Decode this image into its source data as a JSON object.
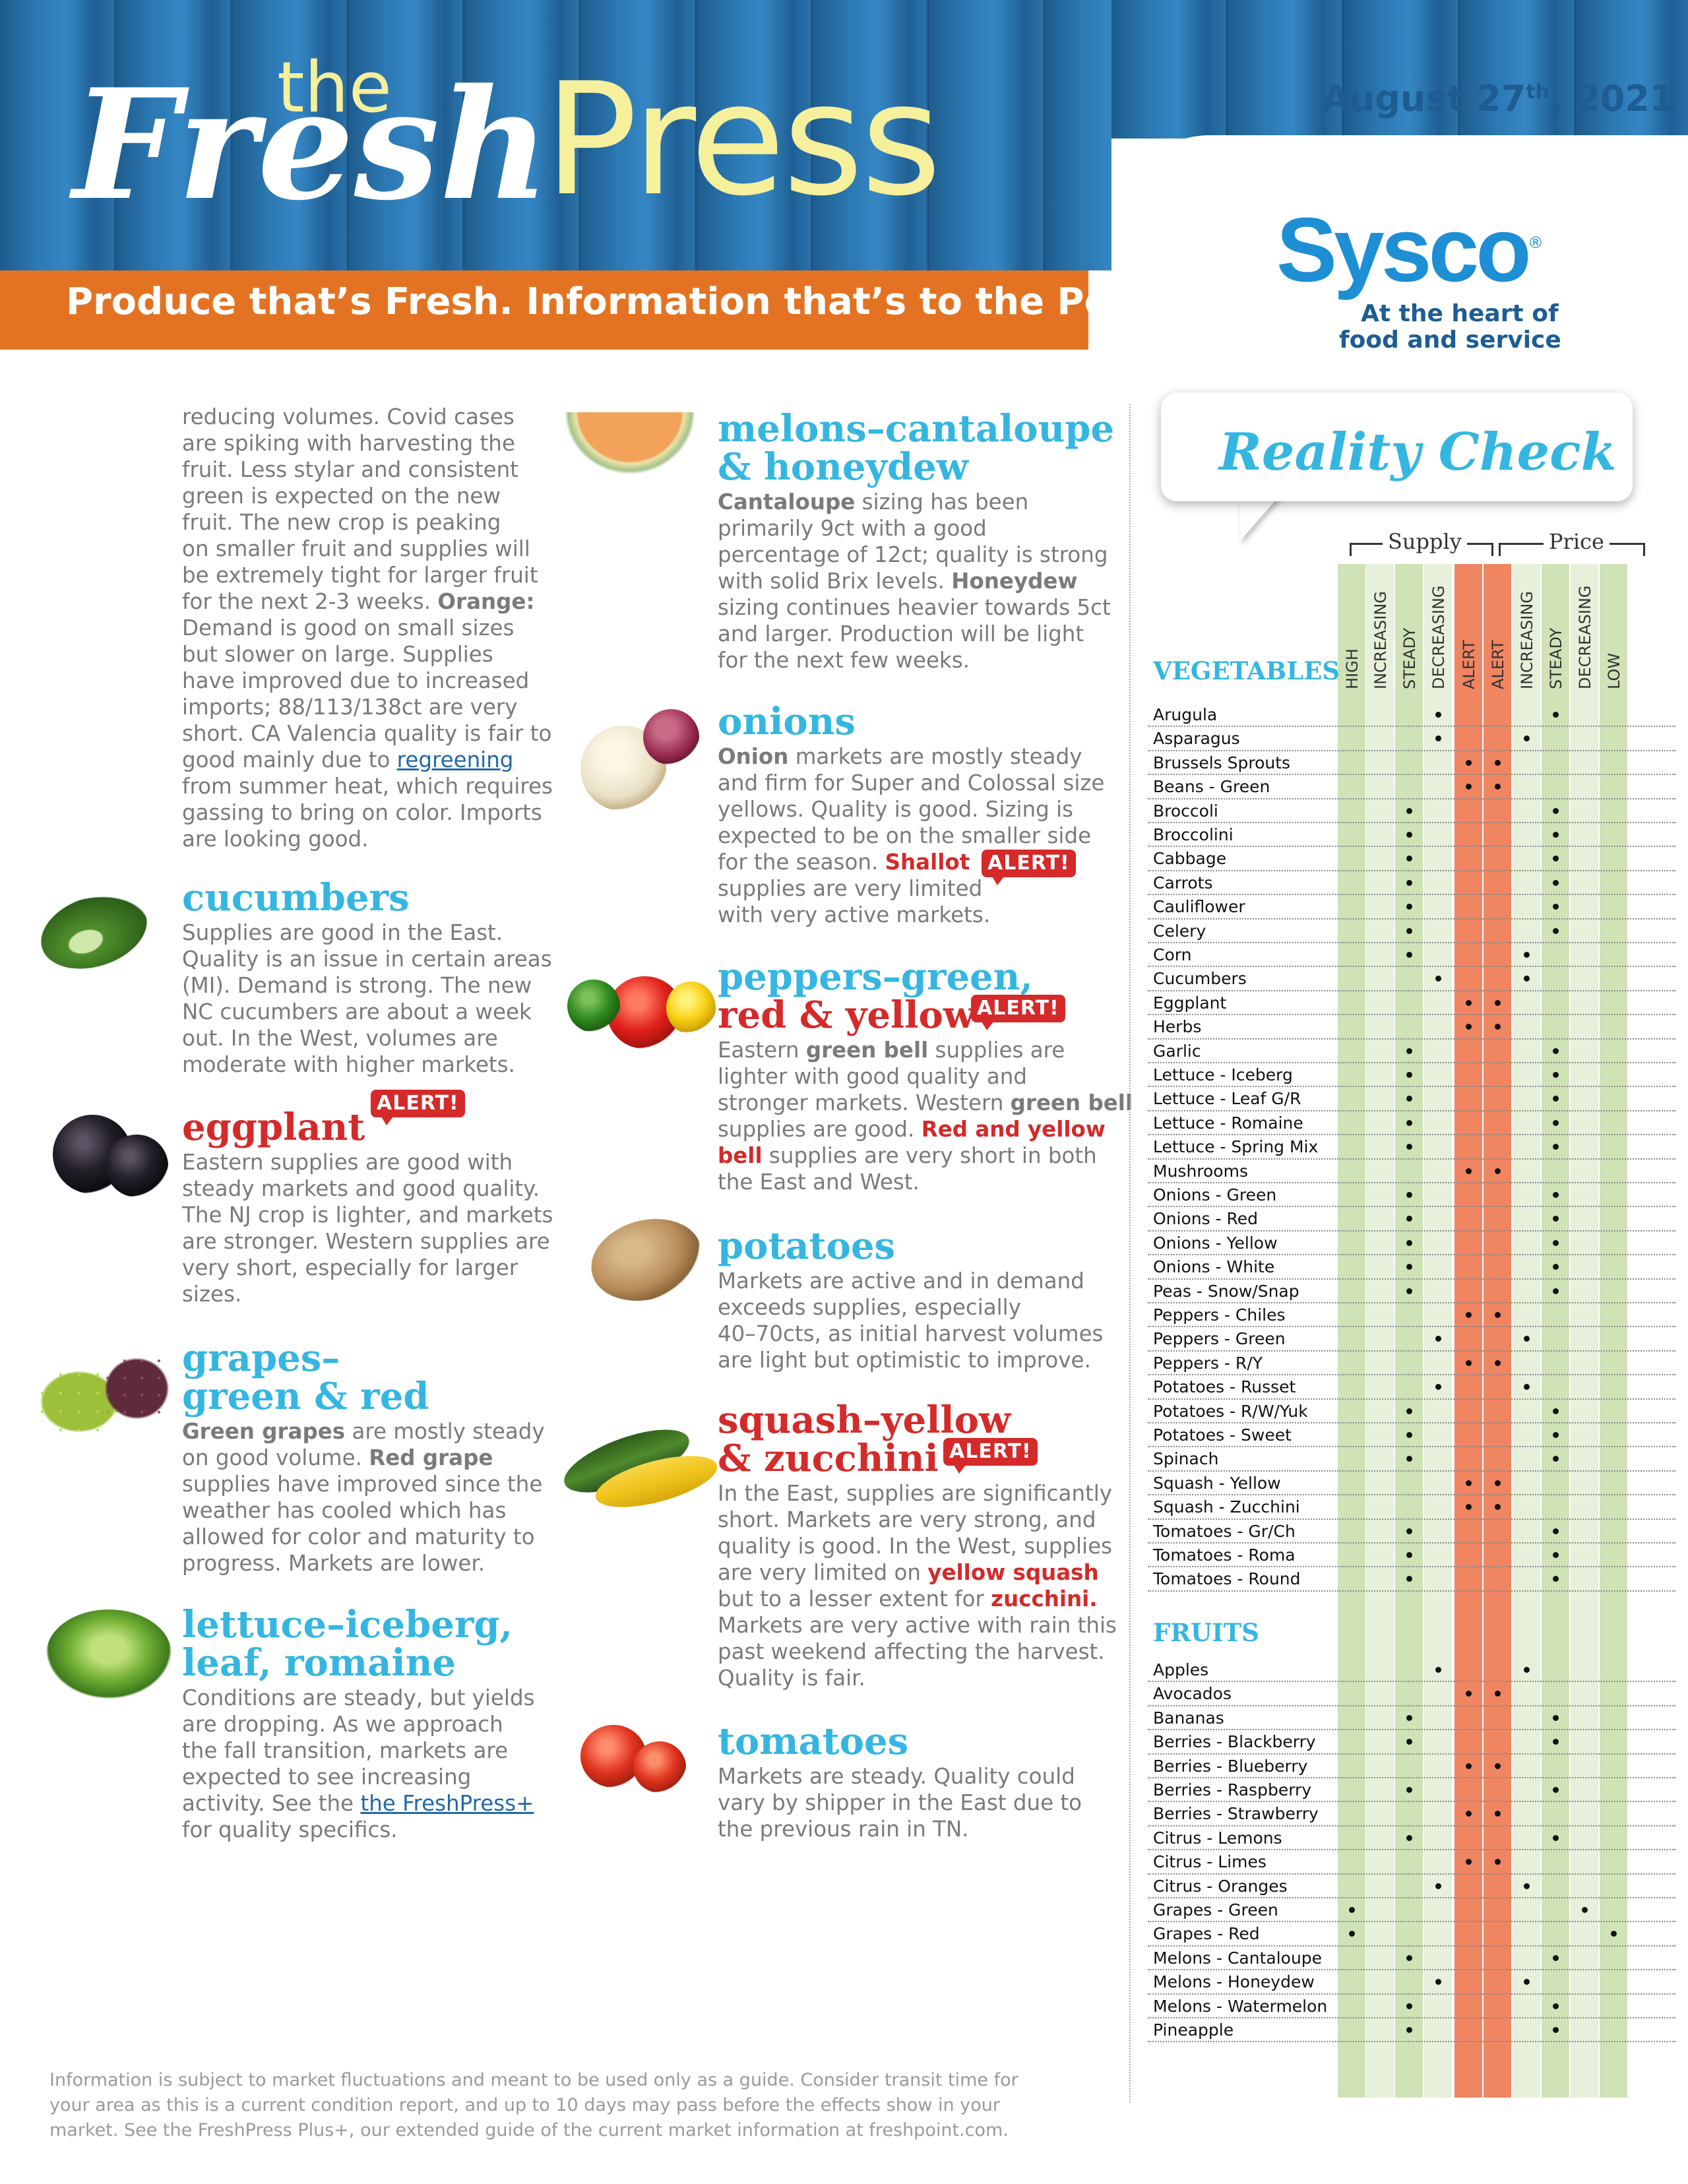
{
  "header": {
    "title_the": "the",
    "title_fresh": "Fresh",
    "title_press": "Press",
    "tagline": "Produce that’s Fresh. Information that’s to the Point.",
    "date_month_day": "August 27",
    "date_suffix": "th",
    "date_year": ", 2021",
    "logo_text": "Sysco",
    "logo_reg": "®",
    "slogan_line1": "At the heart of",
    "slogan_line2": "food and service"
  },
  "left_column": {
    "intro_lines": [
      "reducing volumes. Covid cases",
      "are spiking with harvesting the",
      "fruit. Less stylar and consistent",
      "green is expected on the new",
      "fruit. The new crop is peaking",
      "on smaller fruit and supplies will",
      "be extremely tight for larger fruit",
      "for the next 2-3 weeks. |Orange:|",
      "Demand is good on small sizes",
      "but slower on large. Supplies",
      "have improved due to increased",
      "imports; 88/113/138ct are very",
      "short. CA Valencia quality is fair to",
      "good mainly due to |regreening|",
      "from summer heat, which requires",
      "gassing to bring on color. Imports",
      "are looking good."
    ],
    "sections": [
      {
        "id": "cucumbers",
        "heading": [
          "cucumbers"
        ],
        "alert": "",
        "lines": [
          "Supplies are good in the East.",
          "Quality is an issue in certain areas",
          "(MI). Demand is strong. The new",
          "NC cucumbers are about a week",
          "out. In the West, volumes are",
          "moderate with higher markets."
        ]
      },
      {
        "id": "eggplant",
        "heading": [
          "eggplant"
        ],
        "alert": "ALERT!",
        "lines": [
          "Eastern supplies are good with",
          "steady markets and good quality.",
          "The NJ crop is lighter, and markets",
          "are stronger. Western supplies are",
          "very short, especially for larger",
          "sizes."
        ]
      },
      {
        "id": "grapes",
        "heading": [
          "grapes–",
          "green & red"
        ],
        "alert": "",
        "lines": [
          "|Green grapes| are mostly steady",
          "on good volume. |Red grape|",
          "supplies have improved since the",
          "weather has cooled which has",
          "allowed for color and maturity to",
          "progress. Markets are lower."
        ]
      },
      {
        "id": "lettuce",
        "heading": [
          "lettuce–iceberg,",
          "leaf, romaine"
        ],
        "alert": "",
        "lines": [
          "Conditions are steady, but yields",
          "are dropping. As we approach",
          "the fall transition, markets are",
          "expected to see increasing",
          "activity.  See the |the FreshPress+|",
          "for quality specifics."
        ]
      }
    ]
  },
  "middle_column": {
    "sections": [
      {
        "id": "melons",
        "heading": [
          "melons–cantaloupe",
          "& honeydew"
        ],
        "alert": "",
        "lines": [
          "|Cantaloupe| sizing has been",
          "primarily 9ct with a good",
          "percentage of 12ct; quality is strong",
          "with solid Brix levels. |Honeydew|",
          "sizing continues heavier towards 5ct",
          "and larger. Production will be light",
          "for the next few weeks."
        ]
      },
      {
        "id": "onions",
        "heading": [
          "onions"
        ],
        "alert": "ALERT!",
        "lines": [
          "|Onion| markets are mostly steady",
          "and firm for Super and Colossal size",
          "yellows. Quality is good. Sizing is",
          "expected to be on the smaller side",
          "for the season. |Shallot|",
          "supplies are very limited",
          "with very active markets."
        ]
      },
      {
        "id": "peppers",
        "heading": [
          "peppers–green,",
          "red & yellow"
        ],
        "alert": "ALERT!",
        "lines": [
          "Eastern |green bell| supplies are",
          "lighter with good quality and",
          "stronger markets. Western |green bell|",
          "supplies are good. |Red and yellow|",
          "|bell| supplies are very short in both",
          "the East and West."
        ]
      },
      {
        "id": "potatoes",
        "heading": [
          "potatoes"
        ],
        "alert": "",
        "lines": [
          "Markets are active and in demand",
          "exceeds supplies, especially",
          "40–70cts, as initial harvest volumes",
          "are light but optimistic to improve."
        ]
      },
      {
        "id": "squash",
        "heading": [
          "squash–yellow",
          "& zucchini"
        ],
        "alert": "ALERT!",
        "lines": [
          "In the East, supplies are significantly",
          "short. Markets are very strong, and",
          "quality is good. In the West, supplies",
          "are very limited on |yellow squash|",
          "but to a lesser extent for |zucchini.|",
          "Markets are very active with rain this",
          "past weekend affecting the harvest.",
          "Quality is fair."
        ]
      },
      {
        "id": "tomatoes",
        "heading": [
          "tomatoes"
        ],
        "alert": "",
        "lines": [
          "Markets are steady. Quality could",
          "vary by shipper in the East due to",
          "the previous rain in TN."
        ]
      }
    ]
  },
  "footer": {
    "lines": [
      "Information is subject to market fluctuations and meant to be used only as a guide. Consider transit time for",
      "your area as this is a current condition report, and up to 10 days may pass before the effects show in your",
      "market. See the FreshPress Plus+, our extended guide of the current market information at freshpoint.com."
    ]
  },
  "reality_check": {
    "title": "Reality Check",
    "supply_label": "Supply",
    "price_label": "Price",
    "columns": [
      "HIGH",
      "INCREASING",
      "STEADY",
      "DECREASING",
      "ALERT",
      "ALERT",
      "INCREASING",
      "STEADY",
      "DECREASING",
      "LOW"
    ],
    "column_colors": [
      "#cfe3b7",
      "#e6f0da",
      "#cfe3b7",
      "#e6f0da",
      "#f08562",
      "#f08562",
      "#e6f0da",
      "#cfe3b7",
      "#e6f0da",
      "#cfe3b7"
    ],
    "vegetables_label": "VEGETABLES",
    "fruits_label": "FRUITS",
    "vegetables": [
      {
        "name": "Arugula",
        "supply": "DECREASING",
        "price": "STEADY"
      },
      {
        "name": "Asparagus",
        "supply": "DECREASING",
        "price": "INCREASING"
      },
      {
        "name": "Brussels Sprouts",
        "supply": "ALERT",
        "price": "ALERT"
      },
      {
        "name": "Beans - Green",
        "supply": "ALERT",
        "price": "ALERT"
      },
      {
        "name": "Broccoli",
        "supply": "STEADY",
        "price": "STEADY"
      },
      {
        "name": "Broccolini",
        "supply": "STEADY",
        "price": "STEADY"
      },
      {
        "name": "Cabbage",
        "supply": "STEADY",
        "price": "STEADY"
      },
      {
        "name": "Carrots",
        "supply": "STEADY",
        "price": "STEADY"
      },
      {
        "name": "Cauliflower",
        "supply": "STEADY",
        "price": "STEADY"
      },
      {
        "name": "Celery",
        "supply": "STEADY",
        "price": "STEADY"
      },
      {
        "name": "Corn",
        "supply": "STEADY",
        "price": "INCREASING"
      },
      {
        "name": "Cucumbers",
        "supply": "DECREASING",
        "price": "INCREASING"
      },
      {
        "name": "Eggplant",
        "supply": "ALERT",
        "price": "ALERT"
      },
      {
        "name": "Herbs",
        "supply": "ALERT",
        "price": "ALERT"
      },
      {
        "name": "Garlic",
        "supply": "STEADY",
        "price": "STEADY"
      },
      {
        "name": "Lettuce - Iceberg",
        "supply": "STEADY",
        "price": "STEADY"
      },
      {
        "name": "Lettuce - Leaf G/R",
        "supply": "STEADY",
        "price": "STEADY"
      },
      {
        "name": "Lettuce - Romaine",
        "supply": "STEADY",
        "price": "STEADY"
      },
      {
        "name": "Lettuce - Spring Mix",
        "supply": "STEADY",
        "price": "STEADY"
      },
      {
        "name": "Mushrooms",
        "supply": "ALERT",
        "price": "ALERT"
      },
      {
        "name": "Onions - Green",
        "supply": "STEADY",
        "price": "STEADY"
      },
      {
        "name": "Onions - Red",
        "supply": "STEADY",
        "price": "STEADY"
      },
      {
        "name": "Onions - Yellow",
        "supply": "STEADY",
        "price": "STEADY"
      },
      {
        "name": "Onions - White",
        "supply": "STEADY",
        "price": "STEADY"
      },
      {
        "name": "Peas - Snow/Snap",
        "supply": "STEADY",
        "price": "STEADY"
      },
      {
        "name": "Peppers - Chiles",
        "supply": "ALERT",
        "price": "ALERT"
      },
      {
        "name": "Peppers - Green",
        "supply": "DECREASING",
        "price": "INCREASING"
      },
      {
        "name": "Peppers - R/Y",
        "supply": "ALERT",
        "price": "ALERT"
      },
      {
        "name": "Potatoes - Russet",
        "supply": "DECREASING",
        "price": "INCREASING"
      },
      {
        "name": "Potatoes - R/W/Yuk",
        "supply": "STEADY",
        "price": "STEADY"
      },
      {
        "name": "Potatoes - Sweet",
        "supply": "STEADY",
        "price": "STEADY"
      },
      {
        "name": "Spinach",
        "supply": "STEADY",
        "price": "STEADY"
      },
      {
        "name": "Squash - Yellow",
        "supply": "ALERT",
        "price": "ALERT"
      },
      {
        "name": "Squash - Zucchini",
        "supply": "ALERT",
        "price": "ALERT"
      },
      {
        "name": "Tomatoes - Gr/Ch",
        "supply": "STEADY",
        "price": "STEADY"
      },
      {
        "name": "Tomatoes - Roma",
        "supply": "STEADY",
        "price": "STEADY"
      },
      {
        "name": "Tomatoes - Round",
        "supply": "STEADY",
        "price": "STEADY"
      }
    ],
    "fruits": [
      {
        "name": "Apples",
        "supply": "DECREASING",
        "price": "INCREASING"
      },
      {
        "name": "Avocados",
        "supply": "ALERT",
        "price": "ALERT"
      },
      {
        "name": "Bananas",
        "supply": "STEADY",
        "price": "STEADY"
      },
      {
        "name": "Berries - Blackberry",
        "supply": "STEADY",
        "price": "STEADY"
      },
      {
        "name": "Berries - Blueberry",
        "supply": "ALERT",
        "price": "ALERT"
      },
      {
        "name": "Berries - Raspberry",
        "supply": "STEADY",
        "price": "STEADY"
      },
      {
        "name": "Berries - Strawberry",
        "supply": "ALERT",
        "price": "ALERT"
      },
      {
        "name": "Citrus - Lemons",
        "supply": "STEADY",
        "price": "STEADY"
      },
      {
        "name": "Citrus - Limes",
        "supply": "ALERT",
        "price": "ALERT"
      },
      {
        "name": "Citrus - Oranges",
        "supply": "DECREASING",
        "price": "INCREASING"
      },
      {
        "name": "Grapes - Green",
        "supply": "HIGH",
        "price": "DECREASING"
      },
      {
        "name": "Grapes - Red",
        "supply": "HIGH",
        "price": "LOW"
      },
      {
        "name": "Melons - Cantaloupe",
        "supply": "STEADY",
        "price": "STEADY"
      },
      {
        "name": "Melons - Honeydew",
        "supply": "DECREASING",
        "price": "INCREASING"
      },
      {
        "name": "Melons - Watermelon",
        "supply": "STEADY",
        "price": "STEADY"
      },
      {
        "name": "Pineapple",
        "supply": "STEADY",
        "price": "STEADY"
      }
    ]
  },
  "images": [
    "cucumber-photo",
    "eggplant-photo",
    "grapes-photo",
    "lettuce-photo",
    "melon-photo",
    "onion-photo",
    "pepper-photo",
    "potato-photo",
    "squash-photo",
    "tomato-photo"
  ]
}
